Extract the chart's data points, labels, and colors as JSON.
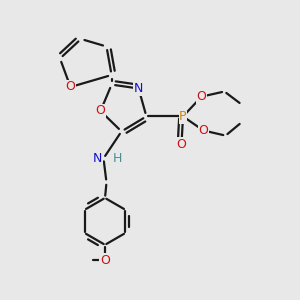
{
  "bg_color": "#e8e8e8",
  "bond_color": "#1a1a1a",
  "bond_lw": 1.6,
  "dbl_sep": 0.07,
  "atom_colors": {
    "O": "#cc1111",
    "N": "#1111cc",
    "P": "#cc8800",
    "H": "#4a9090"
  },
  "font_size": 8.5,
  "xlim": [
    0,
    10
  ],
  "ylim": [
    0,
    10
  ]
}
